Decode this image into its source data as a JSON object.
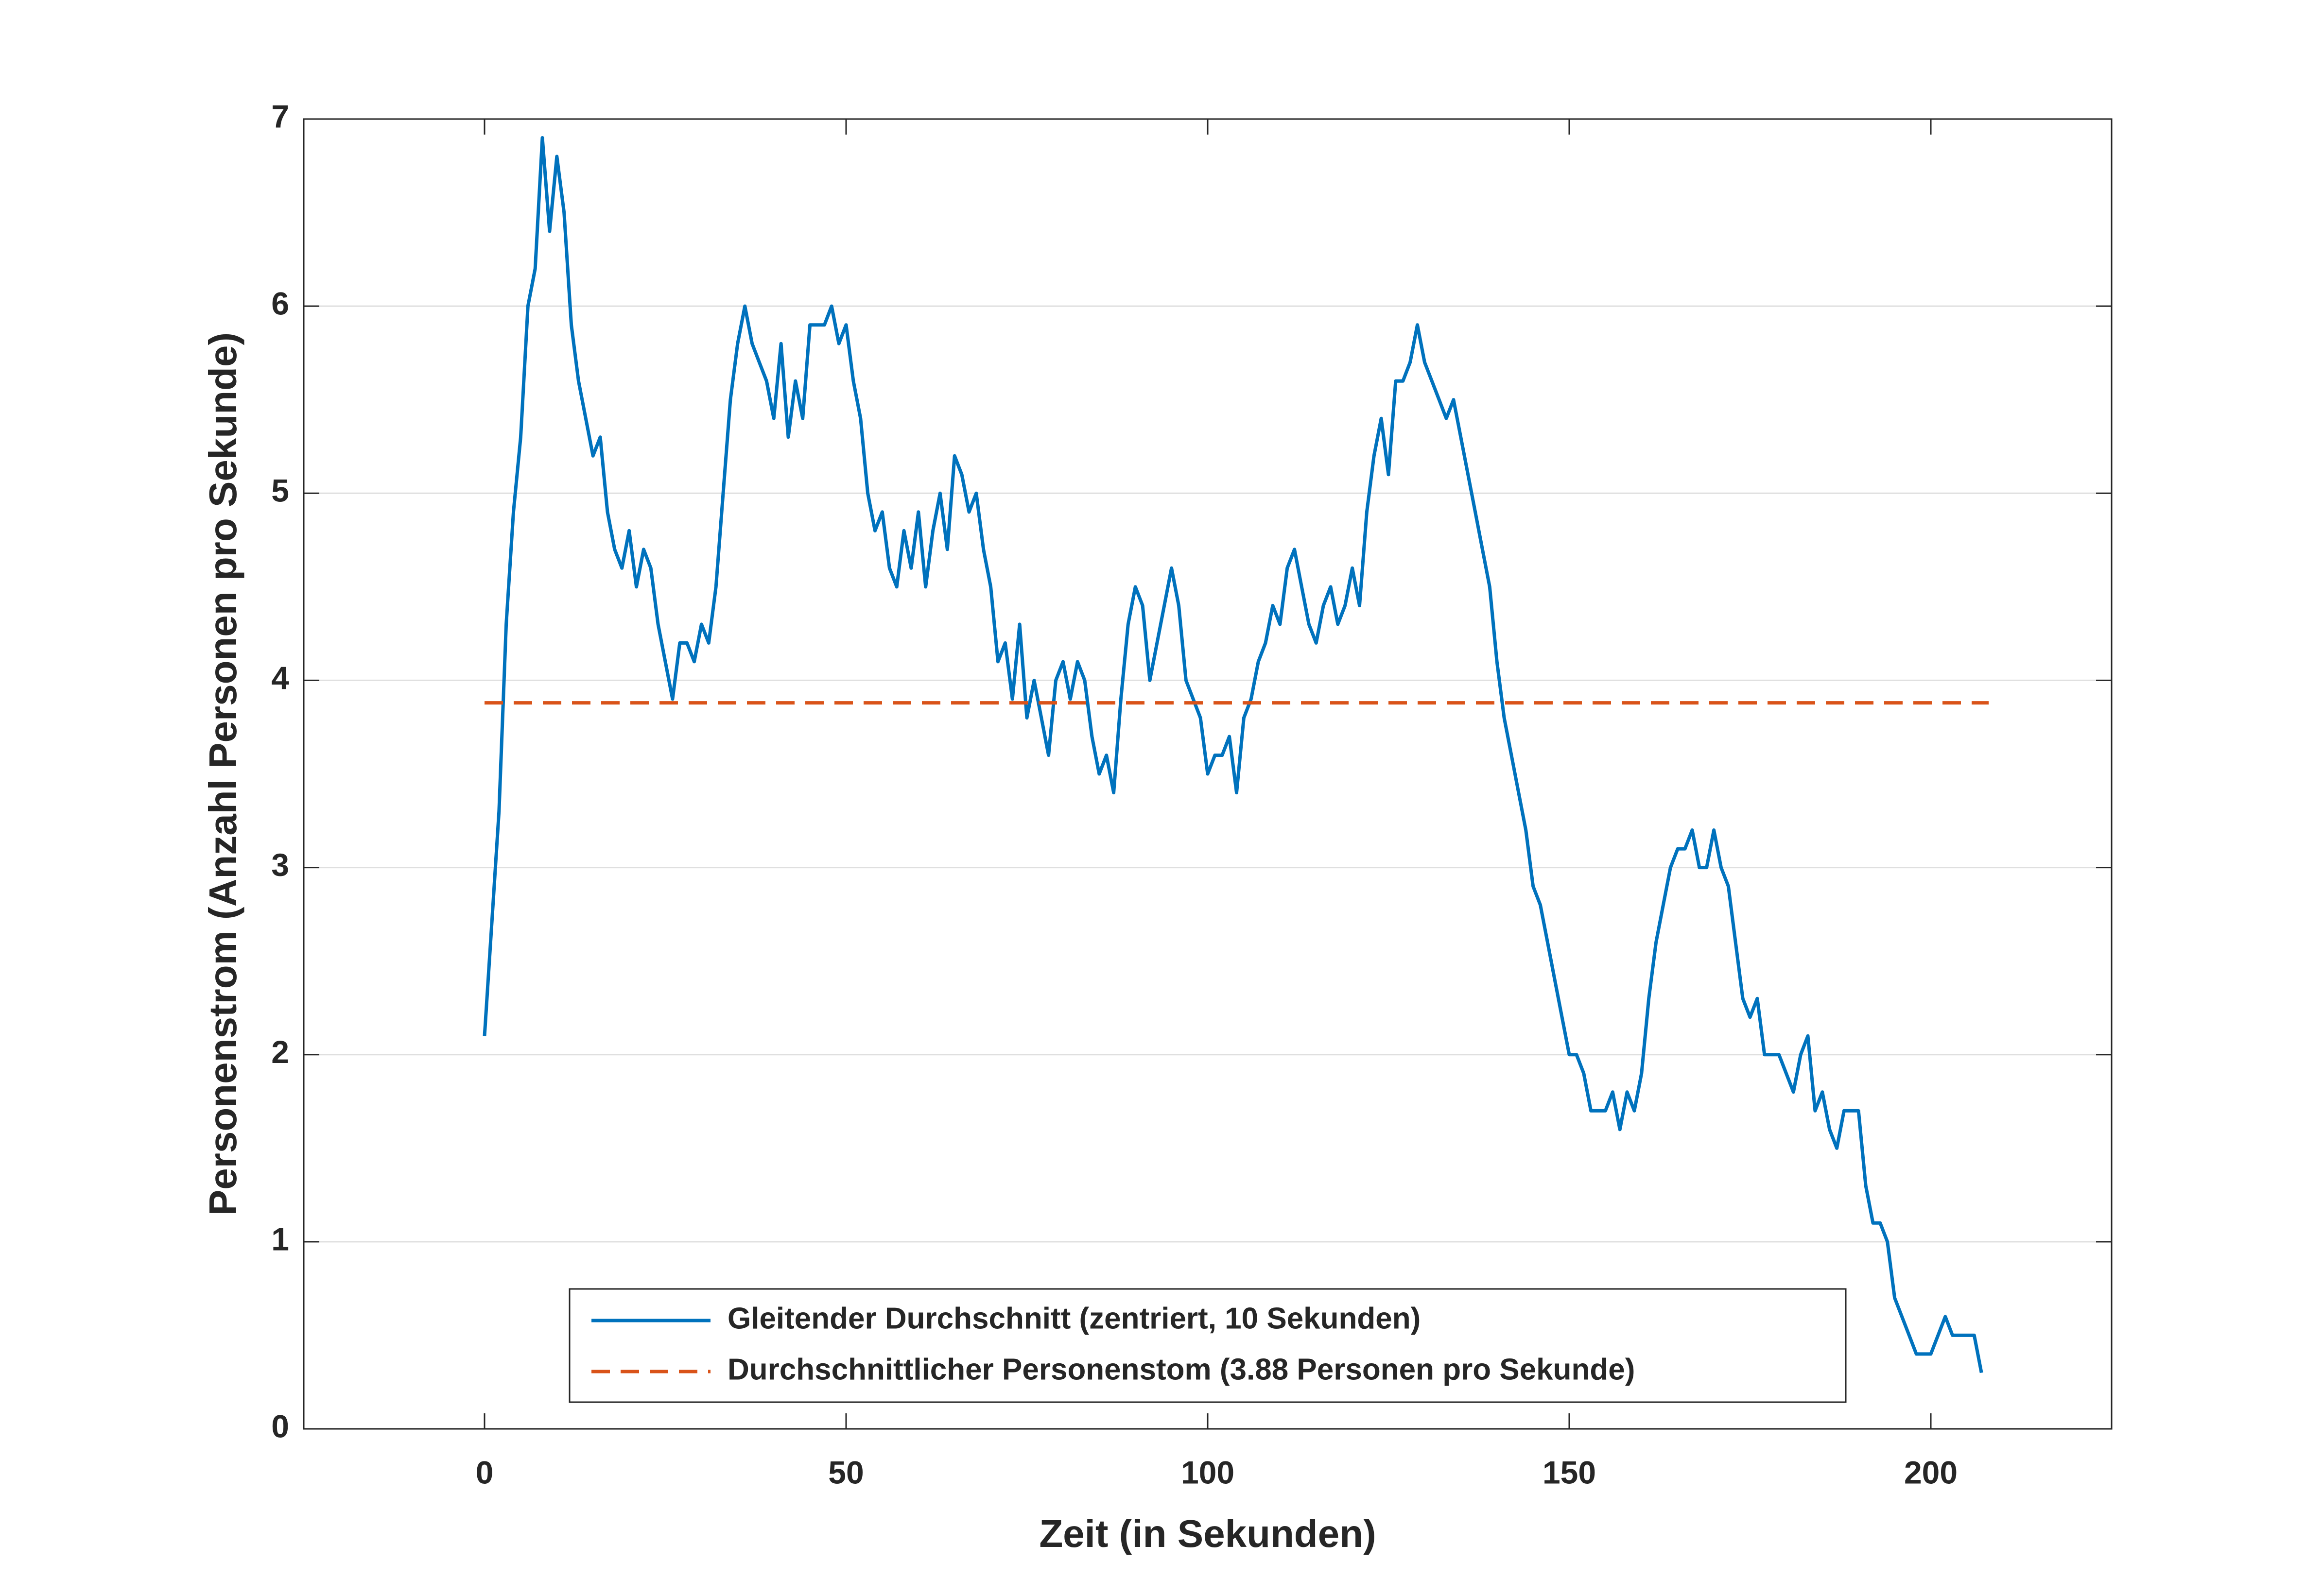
{
  "chart_data": {
    "type": "line",
    "xlabel": "Zeit (in Sekunden)",
    "ylabel": "Personenstrom (Anzahl Personen pro Sekunde)",
    "xlim": [
      -25,
      225
    ],
    "xticks": [
      0,
      50,
      100,
      150,
      200
    ],
    "ylim": [
      0,
      7
    ],
    "yticks": [
      0,
      1,
      2,
      3,
      4,
      5,
      6,
      7
    ],
    "grid": "y",
    "legend": "south",
    "series": [
      {
        "name": "Gleitender Durchschnitt (zentriert, 10 Sekunden)",
        "color": "#0072bd",
        "dash": "solid",
        "x": [
          0,
          1,
          2,
          3,
          4,
          5,
          6,
          7,
          8,
          9,
          10,
          11,
          12,
          13,
          14,
          15,
          16,
          17,
          18,
          19,
          20,
          21,
          22,
          23,
          24,
          25,
          26,
          27,
          28,
          29,
          30,
          31,
          32,
          33,
          34,
          35,
          36,
          37,
          38,
          39,
          40,
          41,
          42,
          43,
          44,
          45,
          46,
          47,
          48,
          49,
          50,
          51,
          52,
          53,
          54,
          55,
          56,
          57,
          58,
          59,
          60,
          61,
          62,
          63,
          64,
          65,
          66,
          67,
          68,
          69,
          70,
          71,
          72,
          73,
          74,
          75,
          76,
          77,
          78,
          79,
          80,
          81,
          82,
          83,
          84,
          85,
          86,
          87,
          88,
          89,
          90,
          91,
          92,
          93,
          94,
          95,
          96,
          97,
          98,
          99,
          100,
          101,
          102,
          103,
          104,
          105,
          106,
          107,
          108,
          109,
          110,
          111,
          112,
          113,
          114,
          115,
          116,
          117,
          118,
          119,
          120,
          121,
          122,
          123,
          124,
          125,
          126,
          127,
          128,
          129,
          130,
          131,
          132,
          133,
          134,
          135,
          136,
          137,
          138,
          139,
          140,
          141,
          142,
          143,
          144,
          145,
          146,
          147,
          148,
          149,
          150,
          151,
          152,
          153,
          154,
          155,
          156,
          157,
          158,
          159,
          160,
          161,
          162,
          163,
          164,
          165,
          166,
          167,
          168,
          169,
          170,
          171,
          172,
          173,
          174,
          175,
          176,
          177,
          178,
          179,
          180,
          181,
          182,
          183,
          184,
          185,
          186,
          187,
          188,
          189,
          190,
          191,
          192,
          193,
          194,
          195,
          196,
          197,
          198,
          199,
          200,
          201,
          202,
          203,
          204,
          205,
          206,
          207
        ],
        "values": [
          2.1,
          2.7,
          3.3,
          4.3,
          4.9,
          5.3,
          6.0,
          6.2,
          6.9,
          6.4,
          6.8,
          6.5,
          5.9,
          5.6,
          5.4,
          5.2,
          5.3,
          4.9,
          4.7,
          4.6,
          4.8,
          4.5,
          4.7,
          4.6,
          4.3,
          4.1,
          3.9,
          4.2,
          4.2,
          4.1,
          4.3,
          4.2,
          4.5,
          5.0,
          5.5,
          5.8,
          6.0,
          5.8,
          5.7,
          5.6,
          5.4,
          5.8,
          5.3,
          5.6,
          5.4,
          5.9,
          5.9,
          5.9,
          6.0,
          5.8,
          5.9,
          5.6,
          5.4,
          5.0,
          4.8,
          4.9,
          4.6,
          4.5,
          4.8,
          4.6,
          4.9,
          4.5,
          4.8,
          5.0,
          4.7,
          5.2,
          5.1,
          4.9,
          5.0,
          4.7,
          4.5,
          4.1,
          4.2,
          3.9,
          4.3,
          3.8,
          4.0,
          3.8,
          3.6,
          4.0,
          4.1,
          3.9,
          4.1,
          4.0,
          3.7,
          3.5,
          3.6,
          3.4,
          3.9,
          4.3,
          4.5,
          4.4,
          4.0,
          4.2,
          4.4,
          4.6,
          4.4,
          4.0,
          3.9,
          3.8,
          3.5,
          3.6,
          3.6,
          3.7,
          3.4,
          3.8,
          3.9,
          4.1,
          4.2,
          4.4,
          4.3,
          4.6,
          4.7,
          4.5,
          4.3,
          4.2,
          4.4,
          4.5,
          4.3,
          4.4,
          4.6,
          4.4,
          4.9,
          5.2,
          5.4,
          5.1,
          5.6,
          5.6,
          5.7,
          5.9,
          5.7,
          5.6,
          5.5,
          5.4,
          5.5,
          5.3,
          5.1,
          4.9,
          4.7,
          4.5,
          4.1,
          3.8,
          3.6,
          3.4,
          3.2,
          2.9,
          2.8,
          2.6,
          2.4,
          2.2,
          2.0,
          2.0,
          1.9,
          1.7,
          1.7,
          1.7,
          1.8,
          1.6,
          1.8,
          1.7,
          1.9,
          2.3,
          2.6,
          2.8,
          3.0,
          3.1,
          3.1,
          3.2,
          3.0,
          3.0,
          3.2,
          3.0,
          2.9,
          2.6,
          2.3,
          2.2,
          2.3,
          2.0,
          2.0,
          2.0,
          1.9,
          1.8,
          2.0,
          2.1,
          1.7,
          1.8,
          1.6,
          1.5,
          1.7,
          1.7,
          1.7,
          1.3,
          1.1,
          1.1,
          1.0,
          0.7,
          0.6,
          0.5,
          0.4,
          0.4,
          0.4,
          0.5,
          0.6,
          0.5,
          0.5,
          0.5,
          0.5,
          0.3
        ]
      },
      {
        "name": "Durchschnittlicher Personenstom (3.88 Personen pro Sekunde)",
        "color": "#d95319",
        "dash": "dashed",
        "x": [
          0,
          208
        ],
        "values": [
          3.88,
          3.88
        ]
      }
    ]
  }
}
